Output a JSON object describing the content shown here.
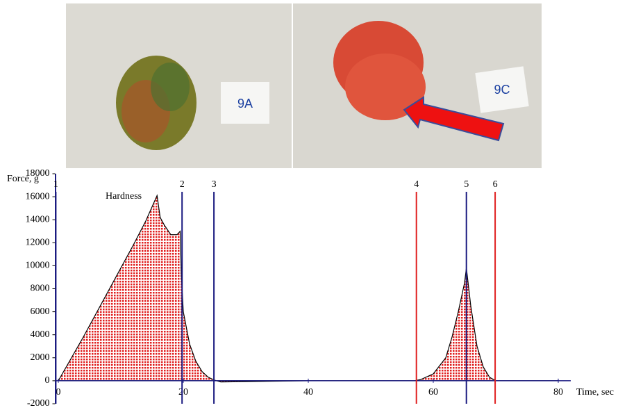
{
  "photos": [
    "9A",
    "9C"
  ],
  "chart_data": {
    "type": "area",
    "y_label": "Force, g",
    "x_label": "Time, sec",
    "annotation": "Hardness",
    "color": "#e02020",
    "x": [
      0,
      2,
      4,
      6,
      8,
      10,
      12,
      14,
      15.8,
      16.3,
      17,
      18,
      19,
      19.5,
      19.7,
      20,
      21,
      22,
      23,
      24,
      25,
      26,
      40,
      57,
      58,
      60,
      62,
      63,
      64,
      65,
      65.3,
      66,
      67,
      68,
      69,
      70,
      80
    ],
    "values": [
      0,
      1900,
      3800,
      5800,
      7800,
      9800,
      11800,
      13900,
      16100,
      14200,
      13500,
      12700,
      12700,
      13000,
      9000,
      6000,
      3200,
      1700,
      800,
      300,
      50,
      -100,
      0,
      0,
      100,
      600,
      2000,
      3800,
      6000,
      8500,
      9800,
      6500,
      3000,
      1200,
      300,
      0,
      0
    ],
    "markers": [
      {
        "label": "1",
        "x": -0.4,
        "color": "#1a1a80"
      },
      {
        "label": "2",
        "x": 19.8,
        "color": "#1a1a80"
      },
      {
        "label": "3",
        "x": 24.9,
        "color": "#1a1a80"
      },
      {
        "label": "4",
        "x": 57.3,
        "color": "#e02020"
      },
      {
        "label": "5",
        "x": 65.3,
        "color": "#1a1a80"
      },
      {
        "label": "6",
        "x": 69.9,
        "color": "#e02020"
      }
    ],
    "xlim": [
      -0.5,
      82
    ],
    "xticks": [
      0,
      20,
      40,
      60,
      80
    ],
    "ylim": [
      -2000,
      18000
    ],
    "yticks": [
      -2000,
      0,
      2000,
      4000,
      6000,
      8000,
      10000,
      12000,
      14000,
      16000,
      18000
    ]
  }
}
